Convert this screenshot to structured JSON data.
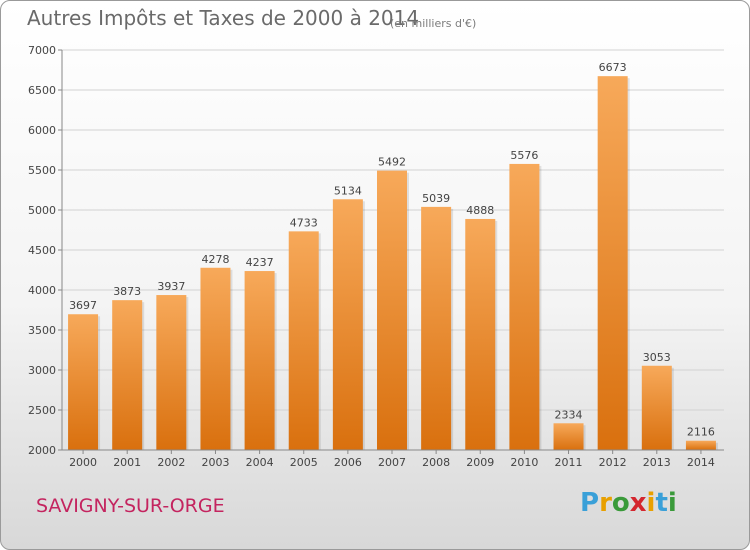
{
  "title": "Autres Impôts et Taxes de 2000 à 2014",
  "subtitle": "(en milliers d'€)",
  "location": "SAVIGNY-SUR-ORGE",
  "brand": {
    "letters": [
      "P",
      "r",
      "o",
      "x",
      "i",
      "t",
      "i"
    ],
    "colors": [
      "#3aa0d8",
      "#e8a000",
      "#3a9a3a",
      "#d4262e",
      "#e8a000",
      "#3aa0d8",
      "#3a9a3a"
    ]
  },
  "chart_data": {
    "type": "bar",
    "categories": [
      "2000",
      "2001",
      "2002",
      "2003",
      "2004",
      "2005",
      "2006",
      "2007",
      "2008",
      "2009",
      "2010",
      "2011",
      "2012",
      "2013",
      "2014"
    ],
    "values": [
      3697,
      3873,
      3937,
      4278,
      4237,
      4733,
      5134,
      5492,
      5039,
      4888,
      5576,
      2334,
      6673,
      3053,
      2116
    ],
    "ylim": [
      2000,
      7000
    ],
    "yticks": [
      2000,
      2500,
      3000,
      3500,
      4000,
      4500,
      5000,
      5500,
      6000,
      6500,
      7000
    ],
    "grid": true,
    "bar_color": "#f08a1e"
  }
}
